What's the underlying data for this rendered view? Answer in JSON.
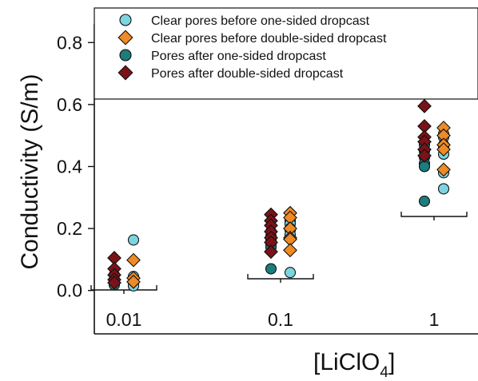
{
  "chart_data": {
    "type": "scatter",
    "xlabel": "[LiClO",
    "xlabel_subscript": "4",
    "xlabel_close": "]",
    "ylabel": "Conductivity (S/m)",
    "ylim": [
      -0.14,
      0.86
    ],
    "yticks": [
      0.0,
      0.2,
      0.4,
      0.6,
      0.8
    ],
    "ytick_labels": [
      "0.0",
      "0.2",
      "0.4",
      "0.6",
      "0.8"
    ],
    "categories": [
      "0.01",
      "0.1",
      "1"
    ],
    "legend_position": "top",
    "series": [
      {
        "name": "Clear pores before one-sided dropcast",
        "marker": "circle",
        "offset": "right",
        "color": "#7ed3e0",
        "values": [
          [
            0.163,
            0.045,
            0.025,
            0.015
          ],
          [
            0.225,
            0.215,
            0.2,
            0.195,
            0.18,
            0.058
          ],
          [
            0.505,
            0.495,
            0.47,
            0.46,
            0.44,
            0.38,
            0.328
          ]
        ]
      },
      {
        "name": "Clear pores before double-sided dropcast",
        "marker": "diamond",
        "offset": "right",
        "color": "#f08a24",
        "values": [
          [
            0.098,
            0.04,
            0.028
          ],
          [
            0.25,
            0.235,
            0.2,
            0.17,
            0.165,
            0.13
          ],
          [
            0.525,
            0.5,
            0.47,
            0.455,
            0.39
          ]
        ]
      },
      {
        "name": "Pores after one-sided dropcast",
        "marker": "circle",
        "offset": "left",
        "color": "#1d7c7c",
        "values": [
          [
            0.05,
            0.035,
            0.025,
            0.018
          ],
          [
            0.19,
            0.175,
            0.16,
            0.15,
            0.14,
            0.07
          ],
          [
            0.47,
            0.45,
            0.43,
            0.41,
            0.4,
            0.288
          ]
        ]
      },
      {
        "name": "Pores after double-sided dropcast",
        "marker": "diamond",
        "offset": "left",
        "color": "#7a1218",
        "values": [
          [
            0.105,
            0.07,
            0.05,
            0.035,
            0.025
          ],
          [
            0.245,
            0.225,
            0.21,
            0.19,
            0.17,
            0.155,
            0.125
          ],
          [
            0.595,
            0.53,
            0.495,
            0.48,
            0.455,
            0.435
          ]
        ]
      }
    ]
  }
}
